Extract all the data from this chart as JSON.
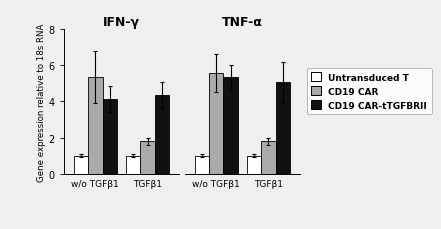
{
  "title_left": "IFN-γ",
  "title_right": "TNF-α",
  "ylabel": "Gene expression relative to 18s RNA",
  "groups": [
    "w/o TGFβ1",
    "TGFβ1"
  ],
  "series": [
    "Untransduced T",
    "CD19 CAR",
    "CD19 CAR-tTGFBRII"
  ],
  "colors": [
    "#ffffff",
    "#aaaaaa",
    "#111111"
  ],
  "edgecolor": "#000000",
  "ifn_values": [
    [
      1.0,
      5.35,
      4.15
    ],
    [
      1.0,
      1.8,
      4.35
    ]
  ],
  "ifn_errors": [
    [
      0.07,
      1.45,
      0.72
    ],
    [
      0.07,
      0.2,
      0.72
    ]
  ],
  "tnf_values": [
    [
      1.0,
      5.55,
      5.35
    ],
    [
      1.0,
      1.8,
      5.05
    ]
  ],
  "tnf_errors": [
    [
      0.07,
      1.05,
      0.65
    ],
    [
      0.07,
      0.2,
      1.15
    ]
  ],
  "ylim": [
    0,
    8
  ],
  "yticks": [
    0,
    2,
    4,
    6,
    8
  ],
  "bar_width": 0.22,
  "background_color": "#f0eeee",
  "fig_background": "#f0eeee"
}
